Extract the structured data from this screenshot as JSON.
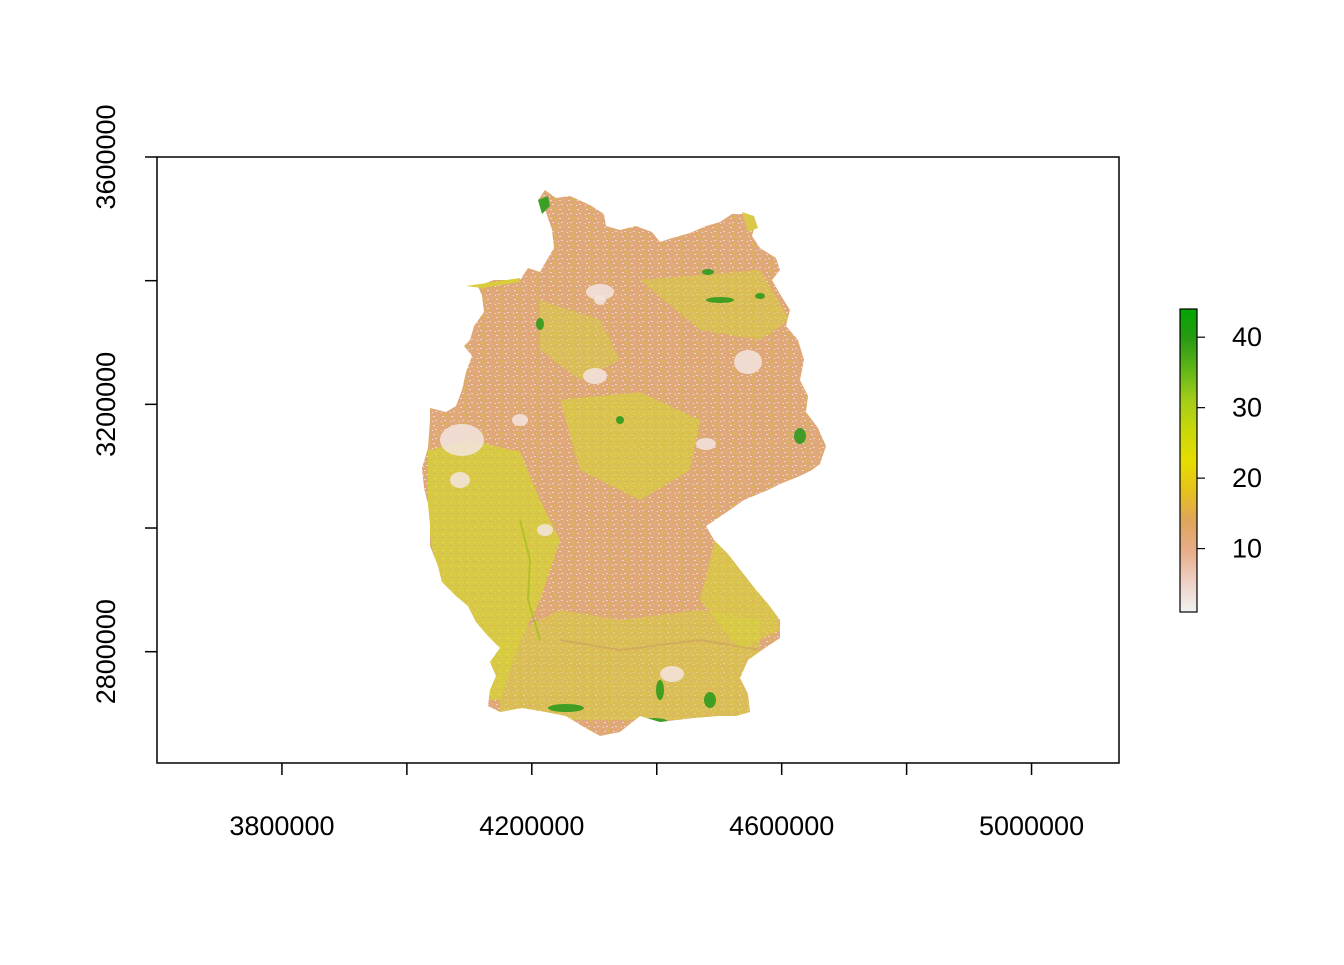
{
  "chart_data": {
    "type": "heatmap",
    "title": "",
    "xlabel": "",
    "ylabel": "",
    "xlim": [
      3600000,
      5140000
    ],
    "ylim": [
      2620000,
      3600000
    ],
    "x_ticks": [
      3800000,
      4000000,
      4200000,
      4400000,
      4600000,
      4800000,
      5000000
    ],
    "x_tick_labels": [
      "3800000",
      "",
      "4200000",
      "",
      "4600000",
      "",
      "5000000"
    ],
    "y_ticks": [
      2800000,
      3000000,
      3200000,
      3400000,
      3600000
    ],
    "y_tick_labels": [
      "2800000",
      "",
      "3200000",
      "",
      "3600000"
    ],
    "legend": {
      "placement": "right",
      "range": [
        1,
        44
      ],
      "ticks": [
        10,
        20,
        30,
        40
      ],
      "tick_labels": [
        "10",
        "20",
        "30",
        "40"
      ],
      "colors": [
        "#f2f2f2",
        "#eed0c4",
        "#e7ae8a",
        "#e0a55b",
        "#e6c21c",
        "#e6dd00",
        "#c8d80a",
        "#a3cd18",
        "#61b617",
        "#2a9a14",
        "#00a600"
      ]
    },
    "raster": {
      "region": "Germany",
      "dominant_colors": [
        "#e1a771",
        "#d7cc3a",
        "#e6d200",
        "#f2e0db",
        "#2d9a1d"
      ]
    }
  }
}
